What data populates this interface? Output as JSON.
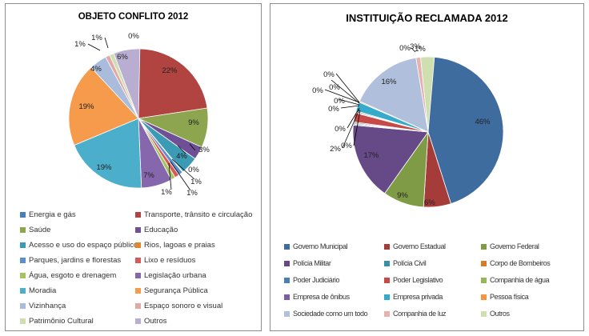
{
  "charts": [
    {
      "title": "OBJETO CONFLITO 2012",
      "chart_data": {
        "type": "pie",
        "title": "OBJETO CONFLITO 2012",
        "legend_position": "bottom",
        "slices": [
          {
            "name": "Energia e gás",
            "value": 0,
            "label": "0%",
            "color": "#4a7ebb"
          },
          {
            "name": "Transporte, trânsito e circulação",
            "value": 22,
            "label": "22%",
            "color": "#b14340"
          },
          {
            "name": "Saúde",
            "value": 9,
            "label": "9%",
            "color": "#8ca54e"
          },
          {
            "name": "Educação",
            "value": 3,
            "label": "3%",
            "color": "#6f4f95"
          },
          {
            "name": "Acesso e uso do espaço público",
            "value": 4,
            "label": "4%",
            "color": "#3b9ab4"
          },
          {
            "name": "Rios, lagoas e praias",
            "value": 0,
            "label": "0%",
            "color": "#e3852a"
          },
          {
            "name": "Parques, jardins e florestas",
            "value": 1,
            "label": "1%",
            "color": "#5d8fcf"
          },
          {
            "name": "Lixo e resíduos",
            "value": 1,
            "label": "1%",
            "color": "#d65b58"
          },
          {
            "name": "Água, esgoto e drenagem",
            "value": 1,
            "label": "1%",
            "color": "#a6c35f"
          },
          {
            "name": "Legislação urbana",
            "value": 7,
            "label": "7%",
            "color": "#8667ad"
          },
          {
            "name": "Moradia",
            "value": 19,
            "label": "19%",
            "color": "#4bafcc"
          },
          {
            "name": "Segurança Pública",
            "value": 19,
            "label": "19%",
            "color": "#f59b4b"
          },
          {
            "name": "Vizinhança",
            "value": 4,
            "label": "4%",
            "color": "#a9bcdc"
          },
          {
            "name": "Espaço sonoro e visual",
            "value": 1,
            "label": "1%",
            "color": "#e1a8a7"
          },
          {
            "name": "Patrimônio Cultural",
            "value": 1,
            "label": "1%",
            "color": "#cfdfb0"
          },
          {
            "name": "Outros",
            "value": 6,
            "label": "6%",
            "color": "#b9aed1"
          }
        ]
      }
    },
    {
      "title": "INSTITUIÇÃO  RECLAMADA 2012",
      "chart_data": {
        "type": "pie",
        "title": "INSTITUIÇÃO  RECLAMADA 2012",
        "legend_position": "bottom",
        "slices": [
          {
            "name": "Governo Municipal",
            "value": 46,
            "label": "46%",
            "color": "#3f6c9f"
          },
          {
            "name": "Governo Estadual",
            "value": 6,
            "label": "6%",
            "color": "#a53c3a"
          },
          {
            "name": "Governo Federal",
            "value": 9,
            "label": "9%",
            "color": "#7f9b45"
          },
          {
            "name": "Polícia Militar",
            "value": 17,
            "label": "17%",
            "color": "#654a87"
          },
          {
            "name": "Polícia Civil",
            "value": 0,
            "label": "0%",
            "color": "#378fa8"
          },
          {
            "name": "Corpo de Bombeiros",
            "value": 0,
            "label": "0%",
            "color": "#d87c2c"
          },
          {
            "name": "Poder Judiciário",
            "value": 0,
            "label": "0%",
            "color": "#4a7ebb"
          },
          {
            "name": "Poder Legislativo",
            "value": 2,
            "label": "2%",
            "color": "#c64b48"
          },
          {
            "name": "Companhia de água",
            "value": 0,
            "label": "0%",
            "color": "#96b65a"
          },
          {
            "name": "Empresa de ônibus",
            "value": 0,
            "label": "0%",
            "color": "#7b5ea4"
          },
          {
            "name": "Empresa privada",
            "value": 2,
            "label": "",
            "color": "#36aacb"
          },
          {
            "name": "Pessoa física",
            "value": 0,
            "label": "0%",
            "color": "#f6953f"
          },
          {
            "name": "Sociedade como um todo",
            "value": 16,
            "label": "16%",
            "color": "#b0c0dc"
          },
          {
            "name": "Companhia de luz",
            "value": 1,
            "label": "1%",
            "color": "#e6b1b0"
          },
          {
            "name": "Outros",
            "value": 3,
            "label": "3%",
            "color": "#cfdfb0"
          }
        ],
        "extra_labels": [
          "0%",
          "0%"
        ]
      }
    }
  ]
}
